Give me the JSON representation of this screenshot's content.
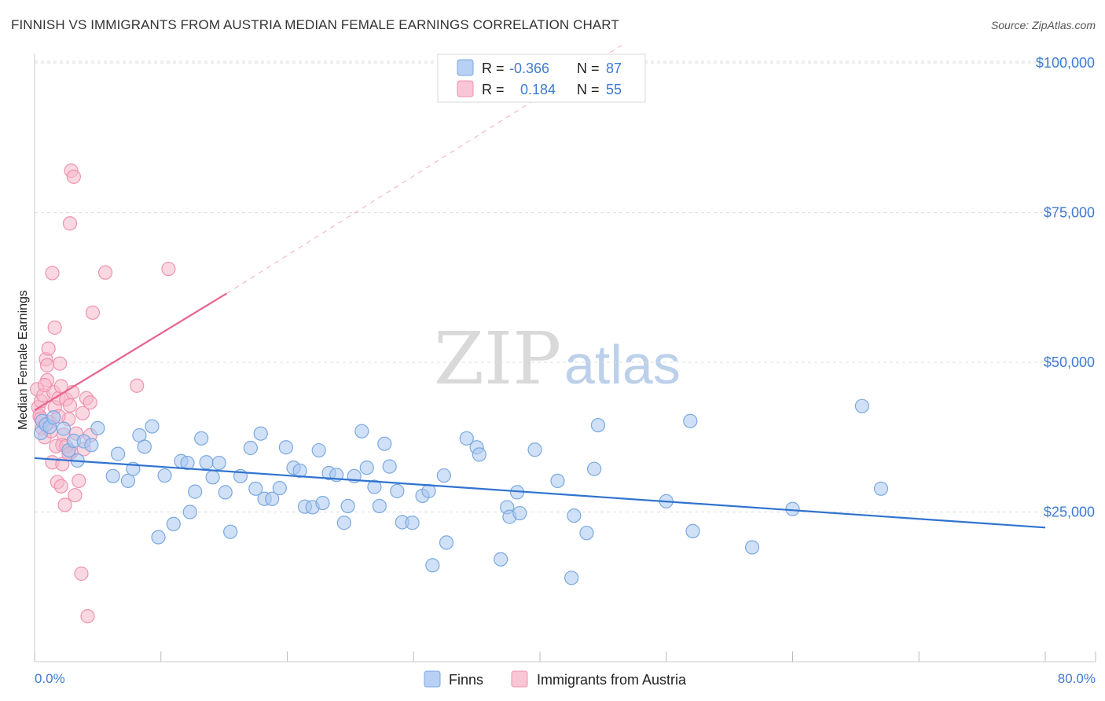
{
  "header": {
    "title": "FINNISH VS IMMIGRANTS FROM AUSTRIA MEDIAN FEMALE EARNINGS CORRELATION CHART",
    "source": "Source: ZipAtlas.com"
  },
  "watermark": {
    "zip": "ZIP",
    "atlas": "atlas"
  },
  "legend_top": [
    {
      "r_label": "R =",
      "r_value": "-0.366",
      "n_label": "N =",
      "n_value": "87"
    },
    {
      "r_label": "R =",
      "r_value": "0.184",
      "n_label": "N =",
      "n_value": "55"
    }
  ],
  "colors": {
    "finns_fill": "#a9c8f0",
    "finns_stroke": "#7aa8e0",
    "finns_line": "#2f73d0",
    "austria_fill": "#f6b8cb",
    "austria_stroke": "#ee93b0",
    "austria_line": "#e8648f",
    "axis_label": "#3f7bd1",
    "grid": "#dddddd"
  },
  "chart_data": {
    "type": "scatter",
    "title": "FINNISH VS IMMIGRANTS FROM AUSTRIA MEDIAN FEMALE EARNINGS CORRELATION CHART",
    "xlabel": "",
    "ylabel": "Median Female Earnings",
    "xlim": [
      0,
      80
    ],
    "ylim": [
      0,
      105000
    ],
    "x_tick_labels": [
      "0.0%",
      "80.0%"
    ],
    "y_ticks": [
      25000,
      50000,
      75000,
      100000
    ],
    "y_tick_labels": [
      "$25,000",
      "$50,000",
      "$75,000",
      "$100,000"
    ],
    "series": [
      {
        "name": "Finns",
        "r": -0.366,
        "n": 87,
        "trend": {
          "x": [
            0,
            80
          ],
          "y": [
            34000,
            22400
          ]
        },
        "points": [
          [
            0.5,
            38200
          ],
          [
            0.6,
            40200
          ],
          [
            0.9,
            39600
          ],
          [
            1.2,
            39200
          ],
          [
            1.5,
            40800
          ],
          [
            2.3,
            38900
          ],
          [
            2.7,
            35300
          ],
          [
            3.1,
            36900
          ],
          [
            3.4,
            33600
          ],
          [
            3.9,
            36800
          ],
          [
            4.5,
            36200
          ],
          [
            5.0,
            39000
          ],
          [
            6.2,
            31000
          ],
          [
            6.6,
            34700
          ],
          [
            7.4,
            30200
          ],
          [
            7.8,
            32200
          ],
          [
            8.3,
            37800
          ],
          [
            8.7,
            35900
          ],
          [
            9.3,
            39300
          ],
          [
            9.8,
            20800
          ],
          [
            10.3,
            31100
          ],
          [
            11.0,
            23000
          ],
          [
            11.6,
            33500
          ],
          [
            12.1,
            33200
          ],
          [
            12.3,
            25000
          ],
          [
            12.7,
            28400
          ],
          [
            13.2,
            37300
          ],
          [
            13.6,
            33300
          ],
          [
            14.1,
            30800
          ],
          [
            14.6,
            33200
          ],
          [
            15.1,
            28300
          ],
          [
            15.5,
            21700
          ],
          [
            16.3,
            31000
          ],
          [
            17.1,
            35700
          ],
          [
            17.5,
            28900
          ],
          [
            17.9,
            38100
          ],
          [
            18.2,
            27200
          ],
          [
            18.8,
            27200
          ],
          [
            19.4,
            29000
          ],
          [
            19.9,
            35800
          ],
          [
            20.5,
            32400
          ],
          [
            21.0,
            31900
          ],
          [
            21.4,
            25900
          ],
          [
            22.0,
            25800
          ],
          [
            22.5,
            35300
          ],
          [
            22.8,
            26500
          ],
          [
            23.3,
            31500
          ],
          [
            23.9,
            31200
          ],
          [
            24.5,
            23200
          ],
          [
            24.8,
            26000
          ],
          [
            25.3,
            31000
          ],
          [
            25.9,
            38500
          ],
          [
            26.3,
            32400
          ],
          [
            26.9,
            29200
          ],
          [
            27.3,
            26000
          ],
          [
            27.7,
            36400
          ],
          [
            28.1,
            32600
          ],
          [
            28.7,
            28500
          ],
          [
            29.1,
            23300
          ],
          [
            29.9,
            23200
          ],
          [
            30.7,
            27700
          ],
          [
            31.2,
            28500
          ],
          [
            31.5,
            16100
          ],
          [
            32.4,
            31100
          ],
          [
            32.6,
            19900
          ],
          [
            34.2,
            37300
          ],
          [
            35.0,
            35800
          ],
          [
            35.2,
            34600
          ],
          [
            36.9,
            17100
          ],
          [
            37.4,
            25800
          ],
          [
            37.6,
            24200
          ],
          [
            38.2,
            28300
          ],
          [
            38.4,
            24800
          ],
          [
            39.6,
            35400
          ],
          [
            41.4,
            30200
          ],
          [
            42.5,
            14000
          ],
          [
            42.7,
            24400
          ],
          [
            43.7,
            21500
          ],
          [
            44.3,
            32200
          ],
          [
            44.6,
            39500
          ],
          [
            50.0,
            26800
          ],
          [
            51.9,
            40200
          ],
          [
            52.1,
            21800
          ],
          [
            56.8,
            19100
          ],
          [
            60.0,
            25500
          ],
          [
            65.5,
            42700
          ],
          [
            67.0,
            28900
          ]
        ]
      },
      {
        "name": "Immigrants from Austria",
        "r": 0.184,
        "n": 55,
        "trend_solid": {
          "x": [
            0,
            15.2
          ],
          "y": [
            42000,
            61500
          ]
        },
        "trend_dashed": {
          "x": [
            15.2,
            46.5
          ],
          "y": [
            61500,
            103000
          ]
        },
        "points": [
          [
            0.2,
            45500
          ],
          [
            0.3,
            42500
          ],
          [
            0.4,
            41000
          ],
          [
            0.5,
            43500
          ],
          [
            0.6,
            39000
          ],
          [
            0.7,
            44500
          ],
          [
            0.8,
            37500
          ],
          [
            0.9,
            50500
          ],
          [
            1.0,
            47000
          ],
          [
            1.1,
            52300
          ],
          [
            1.2,
            40000
          ],
          [
            1.3,
            38500
          ],
          [
            1.4,
            33300
          ],
          [
            1.5,
            45000
          ],
          [
            1.6,
            42500
          ],
          [
            1.7,
            36000
          ],
          [
            1.8,
            30000
          ],
          [
            1.9,
            44000
          ],
          [
            2.0,
            49800
          ],
          [
            2.1,
            29300
          ],
          [
            2.2,
            33000
          ],
          [
            2.3,
            37900
          ],
          [
            2.4,
            26200
          ],
          [
            2.5,
            43800
          ],
          [
            2.7,
            40500
          ],
          [
            2.8,
            42800
          ],
          [
            2.9,
            35000
          ],
          [
            3.0,
            45000
          ],
          [
            3.2,
            27800
          ],
          [
            3.5,
            30200
          ],
          [
            3.8,
            41500
          ],
          [
            4.1,
            44000
          ],
          [
            4.4,
            43300
          ],
          [
            1.4,
            64900
          ],
          [
            1.6,
            55800
          ],
          [
            2.1,
            46000
          ],
          [
            2.2,
            36200
          ],
          [
            2.5,
            36000
          ],
          [
            2.7,
            34700
          ],
          [
            3.3,
            38100
          ],
          [
            2.9,
            82000
          ],
          [
            3.1,
            81000
          ],
          [
            3.7,
            14700
          ],
          [
            3.9,
            35500
          ],
          [
            4.2,
            7600
          ],
          [
            4.6,
            58300
          ],
          [
            4.4,
            37800
          ],
          [
            2.8,
            73200
          ],
          [
            5.6,
            65000
          ],
          [
            8.1,
            46100
          ],
          [
            10.6,
            65600
          ],
          [
            1.0,
            49500
          ],
          [
            0.8,
            46200
          ],
          [
            1.9,
            41000
          ],
          [
            0.5,
            40600
          ]
        ]
      }
    ],
    "legend_bottom": [
      "Finns",
      "Immigrants from Austria"
    ],
    "grid": true
  }
}
